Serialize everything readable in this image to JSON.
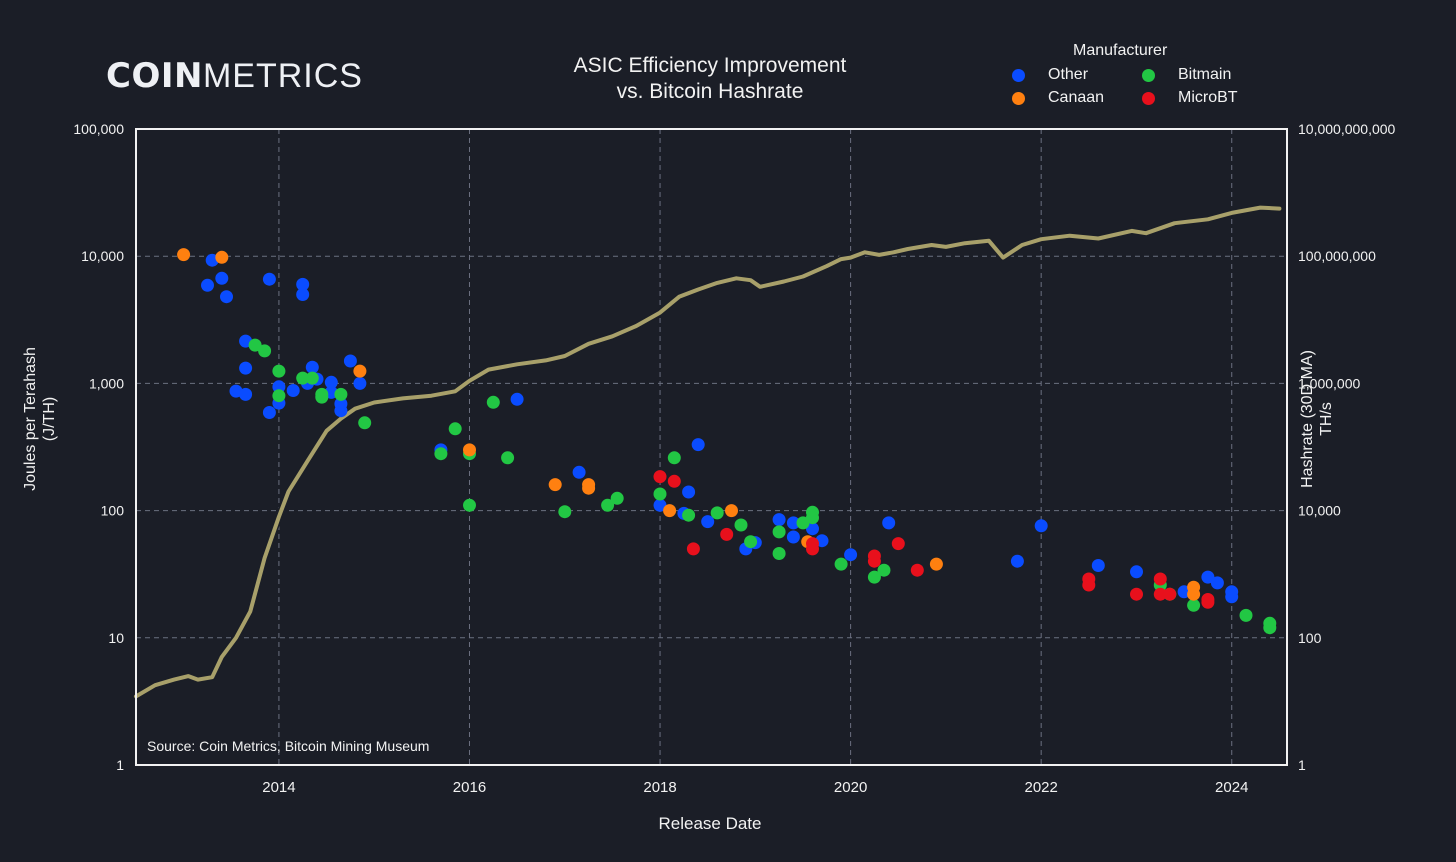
{
  "branding": {
    "logo_bold": "COIN",
    "logo_light": "METRICS"
  },
  "chart_data": {
    "type": "scatter",
    "title": [
      "ASIC Efficiency Improvement",
      "vs. Bitcoin Hashrate"
    ],
    "xlabel": "Release Date",
    "ylabel": [
      "Joules per Terahash",
      "(J/TH)"
    ],
    "y2label": [
      "Hashrate (30D MA)",
      "TH/s"
    ],
    "source": "Source: Coin Metrics, Bitcoin Mining Museum",
    "x_range": [
      2012.5,
      2024.58
    ],
    "x_ticks": [
      2014,
      2016,
      2018,
      2020,
      2022,
      2024
    ],
    "x_tick_labels": [
      "2014",
      "2016",
      "2018",
      "2020",
      "2022",
      "2024"
    ],
    "y_scale": "log",
    "y_range": [
      1,
      100000
    ],
    "y_ticks": [
      1,
      10,
      100,
      1000,
      10000,
      100000
    ],
    "y_tick_labels": [
      "1",
      "10",
      "100",
      "1,000",
      "10,000",
      "100,000"
    ],
    "y2_scale": "log",
    "y2_range": [
      1,
      10000000000
    ],
    "y2_ticks": [
      1,
      100,
      10000,
      1000000,
      100000000,
      10000000000
    ],
    "y2_tick_labels": [
      "1",
      "100",
      "10,000",
      "1,000,000",
      "100,000,000",
      "10,000,000,000"
    ],
    "grid": true,
    "legend": {
      "title": "Manufacturer",
      "placement": "top-right",
      "entries": [
        {
          "name": "Other",
          "color": "#0a4cff"
        },
        {
          "name": "Bitmain",
          "color": "#22c744"
        },
        {
          "name": "Canaan",
          "color": "#ff8010"
        },
        {
          "name": "MicroBT",
          "color": "#e8101c"
        }
      ]
    },
    "series": [
      {
        "name": "Other",
        "color": "#0a4cff",
        "points": [
          [
            2013.3,
            9300
          ],
          [
            2013.25,
            5900
          ],
          [
            2013.4,
            6700
          ],
          [
            2013.45,
            4800
          ],
          [
            2013.9,
            6600
          ],
          [
            2014.25,
            6000
          ],
          [
            2014.25,
            5000
          ],
          [
            2013.65,
            2150
          ],
          [
            2013.65,
            1320
          ],
          [
            2013.55,
            870
          ],
          [
            2013.65,
            820
          ],
          [
            2013.9,
            590
          ],
          [
            2014.0,
            700
          ],
          [
            2014.0,
            940
          ],
          [
            2014.15,
            880
          ],
          [
            2014.3,
            1000
          ],
          [
            2014.35,
            1340
          ],
          [
            2014.4,
            1080
          ],
          [
            2014.55,
            1020
          ],
          [
            2014.55,
            850
          ],
          [
            2014.65,
            690
          ],
          [
            2014.65,
            610
          ],
          [
            2014.75,
            1500
          ],
          [
            2014.85,
            1000
          ],
          [
            2015.7,
            300
          ],
          [
            2016.5,
            750
          ],
          [
            2017.15,
            200
          ],
          [
            2018.0,
            110
          ],
          [
            2018.25,
            95
          ],
          [
            2018.3,
            140
          ],
          [
            2018.4,
            330
          ],
          [
            2018.5,
            82
          ],
          [
            2018.9,
            50
          ],
          [
            2019.0,
            56
          ],
          [
            2019.25,
            85
          ],
          [
            2019.4,
            62
          ],
          [
            2019.4,
            80
          ],
          [
            2019.6,
            72
          ],
          [
            2019.7,
            58
          ],
          [
            2020.0,
            45
          ],
          [
            2020.4,
            80
          ],
          [
            2021.75,
            40
          ],
          [
            2022.0,
            76
          ],
          [
            2022.6,
            37
          ],
          [
            2023.0,
            33
          ],
          [
            2023.5,
            23
          ],
          [
            2023.75,
            30
          ],
          [
            2023.85,
            27
          ],
          [
            2024.0,
            23
          ],
          [
            2024.0,
            21
          ]
        ]
      },
      {
        "name": "Bitmain",
        "color": "#22c744",
        "points": [
          [
            2013.75,
            2000
          ],
          [
            2013.85,
            1800
          ],
          [
            2014.0,
            1250
          ],
          [
            2014.0,
            800
          ],
          [
            2014.25,
            1100
          ],
          [
            2014.35,
            1100
          ],
          [
            2014.45,
            820
          ],
          [
            2014.45,
            780
          ],
          [
            2014.65,
            820
          ],
          [
            2014.9,
            490
          ],
          [
            2015.7,
            280
          ],
          [
            2015.85,
            440
          ],
          [
            2016.0,
            280
          ],
          [
            2016.0,
            110
          ],
          [
            2016.25,
            710
          ],
          [
            2016.4,
            260
          ],
          [
            2017.0,
            98
          ],
          [
            2017.45,
            110
          ],
          [
            2017.55,
            125
          ],
          [
            2018.0,
            135
          ],
          [
            2018.15,
            260
          ],
          [
            2018.3,
            92
          ],
          [
            2018.6,
            96
          ],
          [
            2018.85,
            77
          ],
          [
            2018.95,
            57
          ],
          [
            2019.25,
            68
          ],
          [
            2019.25,
            46
          ],
          [
            2019.5,
            80
          ],
          [
            2019.6,
            97
          ],
          [
            2019.6,
            88
          ],
          [
            2019.9,
            38
          ],
          [
            2020.25,
            30
          ],
          [
            2020.35,
            34
          ],
          [
            2023.25,
            26
          ],
          [
            2023.35,
            22
          ],
          [
            2023.6,
            18
          ],
          [
            2024.15,
            15
          ],
          [
            2024.4,
            13
          ],
          [
            2024.4,
            12
          ]
        ]
      },
      {
        "name": "Canaan",
        "color": "#ff8010",
        "points": [
          [
            2013.0,
            10300
          ],
          [
            2013.4,
            9800
          ],
          [
            2014.85,
            1250
          ],
          [
            2016.0,
            300
          ],
          [
            2016.9,
            160
          ],
          [
            2017.25,
            160
          ],
          [
            2017.25,
            150
          ],
          [
            2018.1,
            100
          ],
          [
            2018.75,
            100
          ],
          [
            2019.55,
            57
          ],
          [
            2020.9,
            38
          ],
          [
            2023.6,
            25
          ],
          [
            2023.6,
            22
          ]
        ]
      },
      {
        "name": "MicroBT",
        "color": "#e8101c",
        "points": [
          [
            2018.0,
            185
          ],
          [
            2018.15,
            170
          ],
          [
            2018.35,
            50
          ],
          [
            2018.7,
            65
          ],
          [
            2019.6,
            55
          ],
          [
            2019.6,
            50
          ],
          [
            2020.25,
            44
          ],
          [
            2020.25,
            40
          ],
          [
            2020.5,
            55
          ],
          [
            2020.7,
            34
          ],
          [
            2022.5,
            29
          ],
          [
            2022.5,
            26
          ],
          [
            2023.0,
            22
          ],
          [
            2023.25,
            29
          ],
          [
            2023.25,
            22
          ],
          [
            2023.35,
            22
          ],
          [
            2023.75,
            20
          ],
          [
            2023.75,
            19
          ]
        ]
      }
    ],
    "line_series": {
      "name": "Hashrate (30D MA)",
      "color": "#a8a06a",
      "axis": "right",
      "points": [
        [
          2012.5,
          12
        ],
        [
          2012.7,
          18
        ],
        [
          2012.9,
          22
        ],
        [
          2013.05,
          25
        ],
        [
          2013.15,
          22
        ],
        [
          2013.3,
          24
        ],
        [
          2013.4,
          50
        ],
        [
          2013.55,
          100
        ],
        [
          2013.7,
          260
        ],
        [
          2013.85,
          1800
        ],
        [
          2014.0,
          8000
        ],
        [
          2014.1,
          20000
        ],
        [
          2014.3,
          60000
        ],
        [
          2014.5,
          180000
        ],
        [
          2014.65,
          280000
        ],
        [
          2014.8,
          400000
        ],
        [
          2015.0,
          500000
        ],
        [
          2015.3,
          580000
        ],
        [
          2015.6,
          640000
        ],
        [
          2015.85,
          750000
        ],
        [
          2016.0,
          1100000
        ],
        [
          2016.2,
          1650000
        ],
        [
          2016.5,
          2000000
        ],
        [
          2016.8,
          2300000
        ],
        [
          2017.0,
          2700000
        ],
        [
          2017.25,
          4200000
        ],
        [
          2017.5,
          5500000
        ],
        [
          2017.75,
          8000000
        ],
        [
          2018.0,
          13000000
        ],
        [
          2018.2,
          23000000
        ],
        [
          2018.4,
          30000000
        ],
        [
          2018.6,
          38000000
        ],
        [
          2018.8,
          45000000
        ],
        [
          2018.95,
          42000000
        ],
        [
          2019.05,
          33000000
        ],
        [
          2019.3,
          40000000
        ],
        [
          2019.5,
          48000000
        ],
        [
          2019.75,
          70000000
        ],
        [
          2019.9,
          90000000
        ],
        [
          2020.0,
          95000000
        ],
        [
          2020.15,
          115000000
        ],
        [
          2020.3,
          105000000
        ],
        [
          2020.45,
          115000000
        ],
        [
          2020.6,
          130000000
        ],
        [
          2020.85,
          150000000
        ],
        [
          2021.0,
          140000000
        ],
        [
          2021.2,
          160000000
        ],
        [
          2021.45,
          175000000
        ],
        [
          2021.6,
          95000000
        ],
        [
          2021.8,
          150000000
        ],
        [
          2022.0,
          185000000
        ],
        [
          2022.3,
          210000000
        ],
        [
          2022.6,
          190000000
        ],
        [
          2022.95,
          250000000
        ],
        [
          2023.1,
          230000000
        ],
        [
          2023.4,
          330000000
        ],
        [
          2023.75,
          380000000
        ],
        [
          2024.0,
          480000000
        ],
        [
          2024.3,
          580000000
        ],
        [
          2024.5,
          560000000
        ]
      ]
    }
  }
}
